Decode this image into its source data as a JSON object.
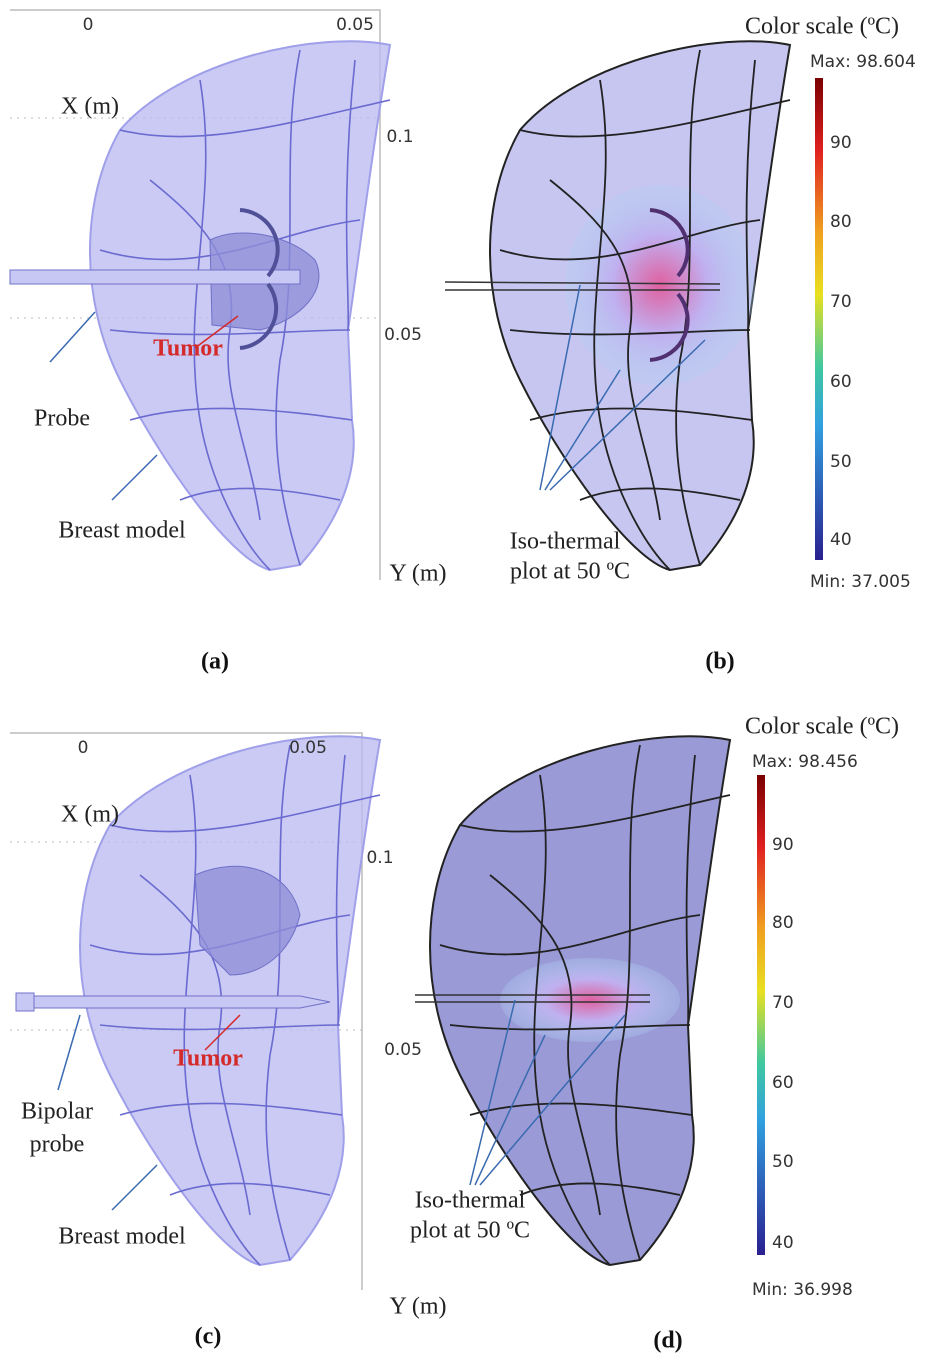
{
  "panels": [
    {
      "caption": "(a)",
      "x_ticks": [
        "0",
        "0.05"
      ],
      "x_label": "X (m)",
      "y_ticks": [
        "0.1",
        "0.05"
      ],
      "y_label": "Y (m)",
      "probe_label": [
        "Probe"
      ],
      "tumor_label": "Tumor",
      "model_label": "Breast model"
    },
    {
      "caption": "(b)",
      "colorbar": {
        "title": "Color scale (ºC)",
        "max": "Max: 98.604",
        "min": "Min: 37.005",
        "ticks": [
          "90",
          "80",
          "70",
          "60",
          "50",
          "40"
        ]
      },
      "annotation": [
        "Iso-thermal",
        "plot at 50 ºC"
      ]
    },
    {
      "caption": "(c)",
      "x_ticks": [
        "0",
        "0.05"
      ],
      "x_label": "X (m)",
      "y_ticks": [
        "0.1",
        "0.05"
      ],
      "y_label": "Y (m)",
      "probe_label": [
        "Bipolar",
        "probe"
      ],
      "tumor_label": "Tumor",
      "model_label": "Breast model"
    },
    {
      "caption": "(d)",
      "colorbar": {
        "title": "Color scale (ºC)",
        "max": "Max: 98.456",
        "min": "Min: 36.998",
        "ticks": [
          "90",
          "80",
          "70",
          "60",
          "50",
          "40"
        ]
      },
      "annotation": [
        "Iso-thermal",
        "plot at 50 ºC"
      ]
    }
  ]
}
